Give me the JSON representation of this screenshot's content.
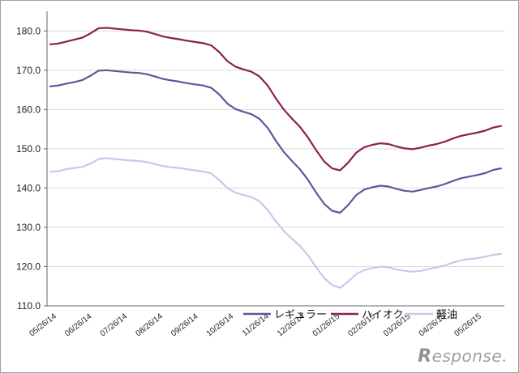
{
  "chart_data": {
    "type": "line",
    "title": "",
    "xlabel": "",
    "ylabel": "",
    "ylim": [
      110,
      185
    ],
    "yticks": [
      110.0,
      120.0,
      130.0,
      140.0,
      150.0,
      160.0,
      170.0,
      180.0
    ],
    "ytick_labels": [
      "110.0",
      "120.0",
      "130.0",
      "140.0",
      "150.0",
      "160.0",
      "170.0",
      "180.0"
    ],
    "grid": true,
    "legend_position": "bottom",
    "xtick_labels": [
      "05/26/14",
      "06/26/14",
      "07/26/14",
      "08/26/14",
      "09/26/14",
      "10/26/14",
      "11/26/14",
      "12/26/14",
      "01/26/15",
      "02/26/15",
      "03/26/15",
      "04/26/15",
      "05/26/15"
    ],
    "series": [
      {
        "name": "レギュラー",
        "color": "#5a5a9a",
        "values": [
          165.9,
          166.1,
          166.6,
          167.0,
          167.5,
          168.6,
          169.9,
          170.0,
          169.8,
          169.6,
          169.4,
          169.3,
          169.0,
          168.4,
          167.8,
          167.4,
          167.1,
          166.7,
          166.4,
          166.1,
          165.5,
          163.8,
          161.5,
          160.1,
          159.4,
          158.8,
          157.6,
          155.3,
          152.1,
          149.2,
          146.9,
          144.8,
          142.1,
          138.9,
          136.0,
          134.2,
          133.7,
          135.7,
          138.2,
          139.6,
          140.2,
          140.6,
          140.4,
          139.8,
          139.3,
          139.1,
          139.5,
          140.0,
          140.4,
          141.0,
          141.8,
          142.5,
          142.9,
          143.3,
          143.8,
          144.6,
          145.0
        ]
      },
      {
        "name": "ハイオク",
        "color": "#8b1f55",
        "values": [
          176.6,
          176.8,
          177.3,
          177.8,
          178.3,
          179.4,
          180.7,
          180.8,
          180.6,
          180.4,
          180.2,
          180.1,
          179.8,
          179.2,
          178.6,
          178.2,
          177.9,
          177.5,
          177.2,
          176.9,
          176.3,
          174.6,
          172.3,
          170.9,
          170.2,
          169.6,
          168.4,
          166.1,
          162.9,
          160.0,
          157.7,
          155.6,
          152.9,
          149.7,
          146.8,
          145.0,
          144.5,
          146.5,
          149.0,
          150.4,
          151.0,
          151.4,
          151.2,
          150.6,
          150.1,
          149.9,
          150.3,
          150.8,
          151.2,
          151.8,
          152.6,
          153.3,
          153.7,
          154.1,
          154.6,
          155.4,
          155.8
        ]
      },
      {
        "name": "軽油",
        "color": "#c8c8ec",
        "values": [
          144.1,
          144.3,
          144.8,
          145.1,
          145.4,
          146.2,
          147.4,
          147.6,
          147.4,
          147.2,
          147.0,
          146.9,
          146.6,
          146.1,
          145.6,
          145.3,
          145.1,
          144.8,
          144.5,
          144.2,
          143.7,
          142.0,
          140.0,
          138.8,
          138.2,
          137.7,
          136.6,
          134.4,
          131.6,
          129.1,
          127.1,
          125.3,
          122.9,
          119.9,
          117.1,
          115.3,
          114.6,
          116.2,
          118.1,
          119.1,
          119.6,
          120.0,
          119.8,
          119.3,
          118.9,
          118.7,
          118.9,
          119.4,
          119.8,
          120.3,
          121.0,
          121.6,
          121.9,
          122.1,
          122.5,
          123.0,
          123.2
        ]
      }
    ]
  },
  "watermark": {
    "mark": "R",
    "text": "esponse."
  }
}
